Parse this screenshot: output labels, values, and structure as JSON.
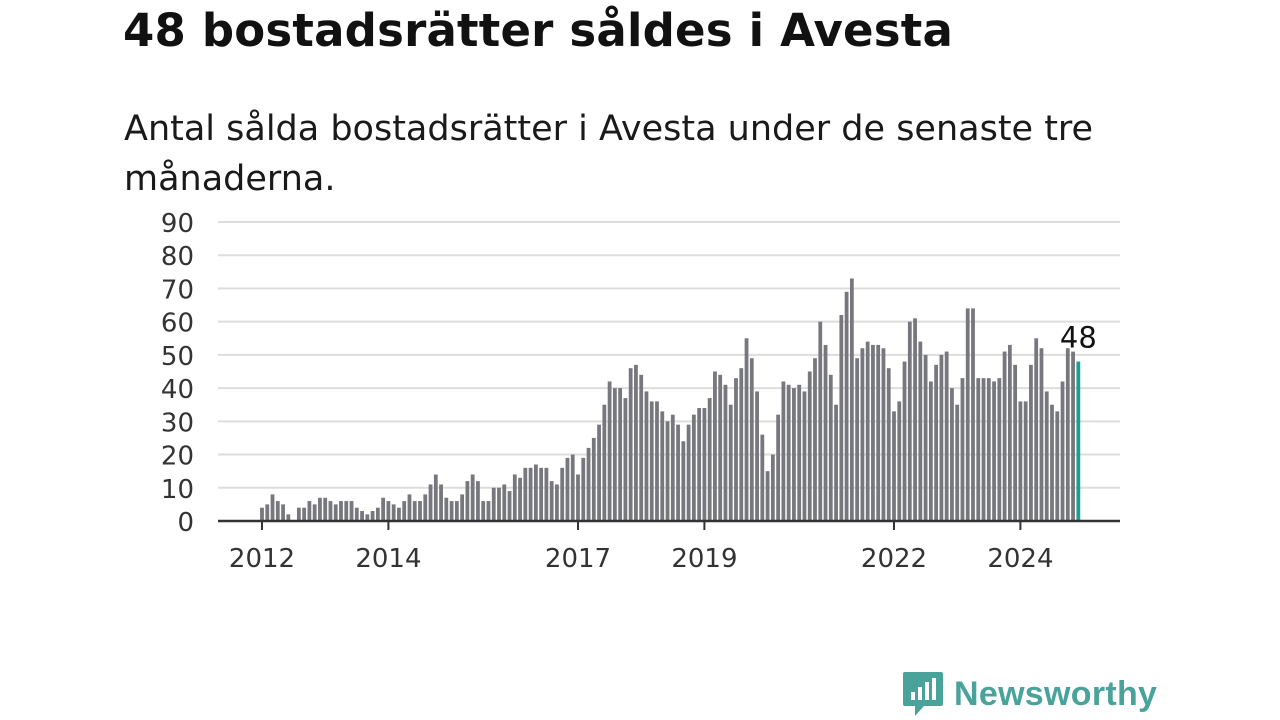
{
  "title": "48 bostadsrätter såldes i Avesta",
  "subtitle": "Antal sålda bostadsrätter i Avesta under de senaste tre månaderna.",
  "brand": {
    "name": "Newsworthy",
    "color": "#49a39b"
  },
  "colors": {
    "bar": "#77777e",
    "highlight": "#1a9e96",
    "grid": "#dddddd",
    "axis": "#333333"
  },
  "chart_data": {
    "type": "bar",
    "ylim": [
      0,
      90
    ],
    "yticks": [
      "0",
      "10",
      "20",
      "30",
      "40",
      "50",
      "60",
      "70",
      "80",
      "90"
    ],
    "xticks": [
      {
        "label": "2012",
        "t": 2012.0
      },
      {
        "label": "2014",
        "t": 2014.0
      },
      {
        "label": "2017",
        "t": 2017.0
      },
      {
        "label": "2019",
        "t": 2019.0
      },
      {
        "label": "2022",
        "t": 2022.0
      },
      {
        "label": "2024",
        "t": 2024.0
      }
    ],
    "grid": true,
    "start": "2012-01",
    "values": [
      4,
      5,
      8,
      6,
      5,
      2,
      0,
      4,
      4,
      6,
      5,
      7,
      7,
      6,
      5,
      6,
      6,
      6,
      4,
      3,
      2,
      3,
      4,
      7,
      6,
      5,
      4,
      6,
      8,
      6,
      6,
      8,
      11,
      14,
      11,
      7,
      6,
      6,
      8,
      12,
      14,
      12,
      6,
      6,
      10,
      10,
      11,
      9,
      14,
      13,
      16,
      16,
      17,
      16,
      16,
      12,
      11,
      16,
      19,
      20,
      14,
      19,
      22,
      25,
      29,
      35,
      42,
      40,
      40,
      37,
      46,
      47,
      44,
      39,
      36,
      36,
      33,
      30,
      32,
      29,
      24,
      29,
      32,
      34,
      34,
      37,
      45,
      44,
      41,
      35,
      43,
      46,
      55,
      49,
      39,
      26,
      15,
      20,
      32,
      42,
      41,
      40,
      41,
      39,
      45,
      49,
      60,
      53,
      44,
      35,
      62,
      69,
      73,
      49,
      52,
      54,
      53,
      53,
      52,
      46,
      33,
      36,
      48,
      60,
      61,
      54,
      50,
      42,
      47,
      50,
      51,
      40,
      35,
      43,
      64,
      64,
      43,
      43,
      43,
      42,
      43,
      51,
      53,
      47,
      36,
      36,
      47,
      55,
      52,
      39,
      35,
      33,
      42,
      52,
      51,
      48
    ],
    "highlight_value": "48",
    "series": [
      {
        "values_ref": "values"
      }
    ]
  }
}
